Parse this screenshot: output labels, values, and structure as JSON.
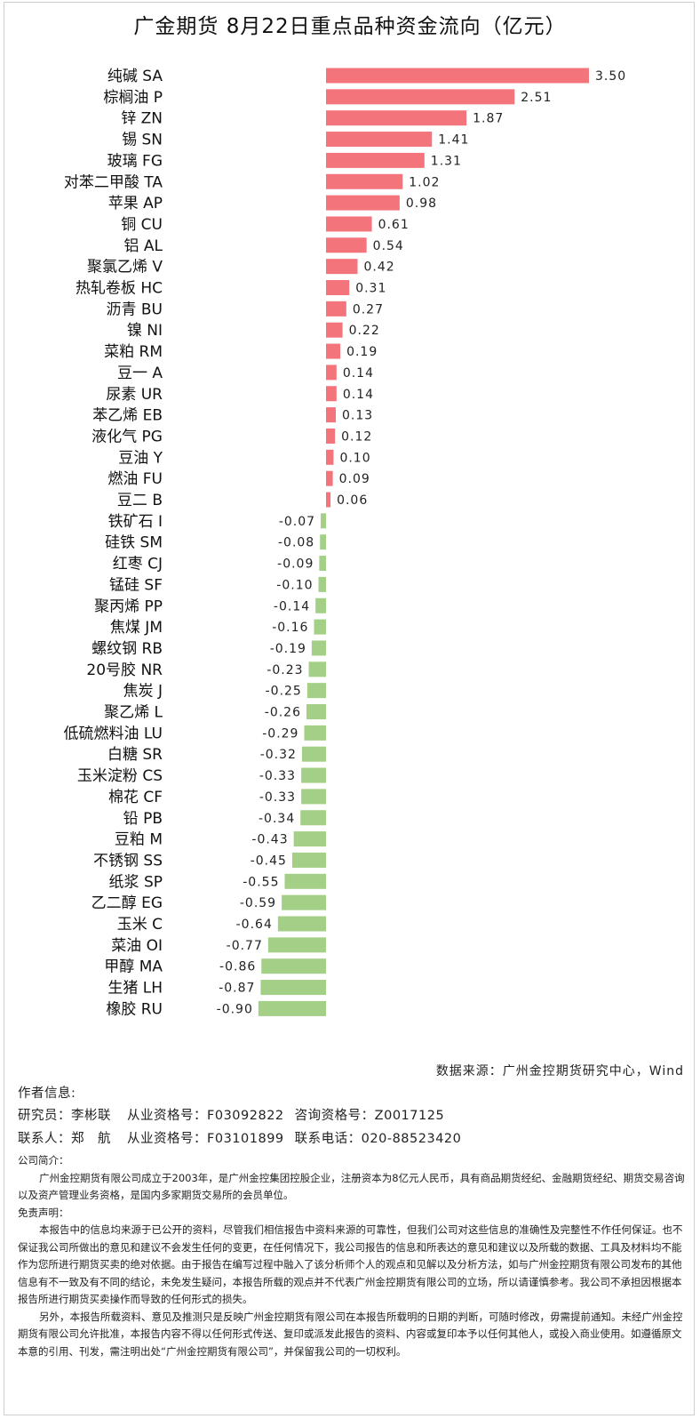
{
  "chart_data": {
    "type": "bar",
    "orientation": "horizontal",
    "title": "广金期货 8月22日重点品种资金流向（亿元）",
    "positive_color": "#f4747c",
    "negative_color": "#a4cf86",
    "categories": [
      "纯碱 SA",
      "棕榈油 P",
      "锌 ZN",
      "锡 SN",
      "玻璃 FG",
      "对苯二甲酸 TA",
      "苹果 AP",
      "铜 CU",
      "铝 AL",
      "聚氯乙烯 V",
      "热轧卷板 HC",
      "沥青 BU",
      "镍 NI",
      "菜粕 RM",
      "豆一 A",
      "尿素 UR",
      "苯乙烯 EB",
      "液化气 PG",
      "豆油 Y",
      "燃油 FU",
      "豆二 B",
      "铁矿石 I",
      "硅铁 SM",
      "红枣 CJ",
      "锰硅 SF",
      "聚丙烯 PP",
      "焦煤 JM",
      "螺纹钢 RB",
      "20号胶 NR",
      "焦炭 J",
      "聚乙烯 L",
      "低硫燃料油 LU",
      "白糖 SR",
      "玉米淀粉 CS",
      "棉花 CF",
      "铅 PB",
      "豆粕 M",
      "不锈钢 SS",
      "纸浆 SP",
      "乙二醇 EG",
      "玉米 C",
      "菜油 OI",
      "甲醇 MA",
      "生猪 LH",
      "橡胶 RU"
    ],
    "values": [
      3.5,
      2.51,
      1.87,
      1.41,
      1.31,
      1.02,
      0.98,
      0.61,
      0.54,
      0.42,
      0.31,
      0.27,
      0.22,
      0.19,
      0.14,
      0.14,
      0.13,
      0.12,
      0.1,
      0.09,
      0.06,
      -0.07,
      -0.08,
      -0.09,
      -0.1,
      -0.14,
      -0.16,
      -0.19,
      -0.23,
      -0.25,
      -0.26,
      -0.29,
      -0.32,
      -0.33,
      -0.33,
      -0.34,
      -0.43,
      -0.45,
      -0.55,
      -0.59,
      -0.64,
      -0.77,
      -0.86,
      -0.87,
      -0.9
    ],
    "value_labels": [
      "3.50",
      "2.51",
      "1.87",
      "1.41",
      "1.31",
      "1.02",
      "0.98",
      "0.61",
      "0.54",
      "0.42",
      "0.31",
      "0.27",
      "0.22",
      "0.19",
      "0.14",
      "0.14",
      "0.13",
      "0.12",
      "0.10",
      "0.09",
      "0.06",
      "-0.07",
      "-0.08",
      "-0.09",
      "-0.10",
      "-0.14",
      "-0.16",
      "-0.19",
      "-0.23",
      "-0.25",
      "-0.26",
      "-0.29",
      "-0.32",
      "-0.33",
      "-0.33",
      "-0.34",
      "-0.43",
      "-0.45",
      "-0.55",
      "-0.59",
      "-0.64",
      "-0.77",
      "-0.86",
      "-0.87",
      "-0.90"
    ],
    "xlim": [
      -0.9,
      3.5
    ]
  },
  "source": "数据来源：广州金控期货研究中心，Wind",
  "author": {
    "header": "作者信息:",
    "researcher_label": "研究员：李彬联",
    "researcher_cert": "从业资格号：F03092822",
    "researcher_consult": "咨询资格号：Z0017125",
    "contact_label": "联系人：郑　航",
    "contact_cert": "从业资格号：F03101899",
    "contact_phone": "联系电话：020-88523420"
  },
  "company": {
    "header": "公司简介：",
    "text": "广州金控期货有限公司成立于2003年，是广州金控集团控股企业，注册资本为8亿元人民币，具有商品期货经纪、金融期货经纪、期货交易咨询以及资产管理业务资格，是国内多家期货交易所的会员单位。"
  },
  "disclaimer": {
    "header": "免责声明：",
    "p1": "本报告中的信息均来源于已公开的资料，尽管我们相信报告中资料来源的可靠性，但我们公司对这些信息的准确性及完整性不作任何保证。也不保证我公司所做出的意见和建议不会发生任何的变更，在任何情况下，我公司报告的信息和所表达的意见和建议以及所载的数据、工具及材料均不能作为您所进行期货买卖的绝对依据。由于报告在编写过程中融入了该分析师个人的观点和见解以及分析方法，如与广州金控期货有限公司发布的其他信息有不一致及有不同的结论，未免发生疑问，本报告所载的观点并不代表广州金控期货有限公司的立场，所以请谨慎参考。我公司不承担因根据本报告所进行期货买卖操作而导致的任何形式的损失。",
    "p2": "另外，本报告所载资料、意见及推测只是反映广州金控期货有限公司在本报告所载明的日期的判断，可随时修改，毋需提前通知。未经广州金控期货有限公司允许批准，本报告内容不得以任何形式传送、复印或派发此报告的资料、内容或复印本予以任何其他人，或投入商业使用。如遵循原文本意的引用、刊发，需注明出处“广州金控期货有限公司”，并保留我公司的一切权利。"
  }
}
